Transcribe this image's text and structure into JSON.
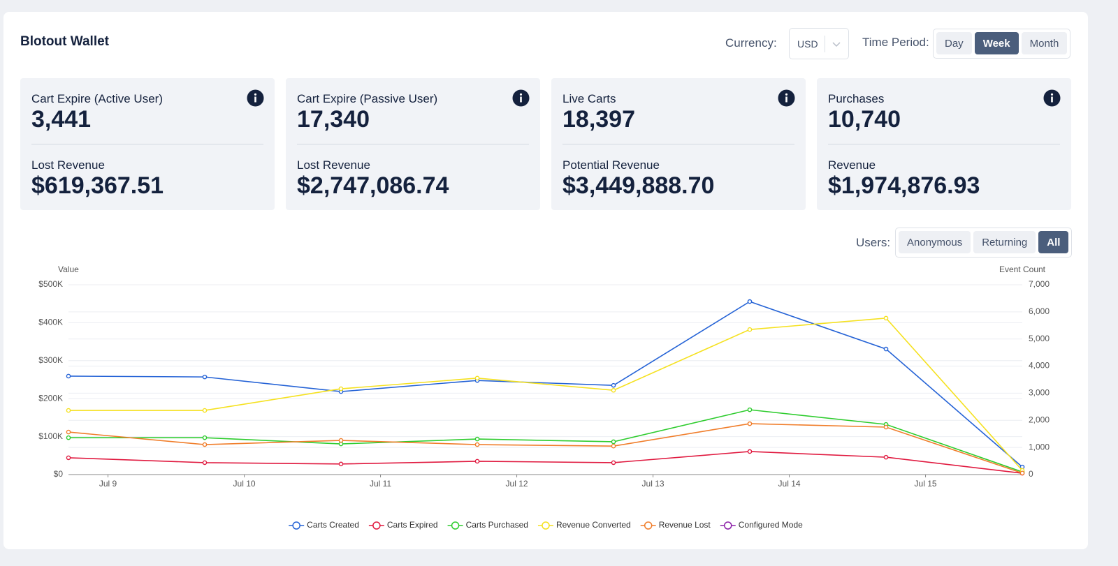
{
  "header": {
    "title": "Blotout Wallet",
    "currency_label": "Currency:",
    "currency": "USD",
    "time_period_label": "Time Period:",
    "time_periods": [
      "Day",
      "Week",
      "Month"
    ],
    "active_time_period": "Week"
  },
  "cards": [
    {
      "label": "Cart Expire (Active User)",
      "value": "3,441",
      "sub_label": "Lost Revenue",
      "sub_value": "$619,367.51"
    },
    {
      "label": "Cart Expire (Passive User)",
      "value": "17,340",
      "sub_label": "Lost Revenue",
      "sub_value": "$2,747,086.74"
    },
    {
      "label": "Live Carts",
      "value": "18,397",
      "sub_label": "Potential Revenue",
      "sub_value": "$3,449,888.70"
    },
    {
      "label": "Purchases",
      "value": "10,740",
      "sub_label": "Revenue",
      "sub_value": "$1,974,876.93"
    }
  ],
  "users_filter": {
    "label": "Users:",
    "options": [
      "Anonymous",
      "Returning",
      "All"
    ],
    "active": "All"
  },
  "chart_data": {
    "type": "line",
    "ylabel": "Value",
    "y2label": "Event Count",
    "x": [
      8.71,
      9.71,
      10.71,
      11.71,
      12.71,
      13.71,
      14.71,
      15.71
    ],
    "xlim": [
      8.71,
      15.71
    ],
    "xticks": [
      {
        "value": 9,
        "label": "Jul 9"
      },
      {
        "value": 10,
        "label": "Jul 10"
      },
      {
        "value": 11,
        "label": "Jul 11"
      },
      {
        "value": 12,
        "label": "Jul 12"
      },
      {
        "value": 13,
        "label": "Jul 13"
      },
      {
        "value": 14,
        "label": "Jul 14"
      },
      {
        "value": 15,
        "label": "Jul 15"
      }
    ],
    "ylim": [
      0,
      500000
    ],
    "yticks": [
      {
        "value": 0,
        "label": "$0"
      },
      {
        "value": 100000,
        "label": "$100K"
      },
      {
        "value": 200000,
        "label": "$200K"
      },
      {
        "value": 300000,
        "label": "$300K"
      },
      {
        "value": 400000,
        "label": "$400K"
      },
      {
        "value": 500000,
        "label": "$500K"
      }
    ],
    "y2lim": [
      0,
      7000
    ],
    "y2ticks": [
      0,
      {
        "value": 1000,
        "label": "1,000"
      },
      {
        "value": 2000,
        "label": "2,000"
      },
      {
        "value": 3000,
        "label": "3,000"
      },
      {
        "value": 4000,
        "label": "4,000"
      },
      {
        "value": 5000,
        "label": "5,000"
      },
      {
        "value": 6000,
        "label": "6,000"
      },
      {
        "value": 7000,
        "label": "7,000"
      }
    ],
    "grid": true,
    "legend": "bottom",
    "series": [
      {
        "name": "Carts Created",
        "color": "#2563d6",
        "axis": "y2",
        "values": [
          3630,
          3600,
          3060,
          3470,
          3290,
          6380,
          4630,
          280
        ]
      },
      {
        "name": "Carts Expired",
        "color": "#e0193f",
        "axis": "y2",
        "values": [
          620,
          440,
          390,
          490,
          440,
          850,
          640,
          50
        ]
      },
      {
        "name": "Carts Purchased",
        "color": "#2ecc2e",
        "axis": "y2",
        "values": [
          1360,
          1360,
          1130,
          1310,
          1210,
          2390,
          1850,
          100
        ]
      },
      {
        "name": "Revenue Converted",
        "color": "#f5e11f",
        "axis": "y",
        "values": [
          169000,
          169000,
          226000,
          254000,
          222000,
          382000,
          412000,
          11000
        ]
      },
      {
        "name": "Revenue Lost",
        "color": "#f07d2a",
        "axis": "y",
        "values": [
          112000,
          79000,
          90000,
          79000,
          75000,
          134000,
          125000,
          4000
        ]
      },
      {
        "name": "Configured Mode",
        "color": "#8b1fa8",
        "axis": "y2",
        "values": [
          null,
          null,
          null,
          null,
          null,
          null,
          null,
          null
        ]
      }
    ]
  }
}
